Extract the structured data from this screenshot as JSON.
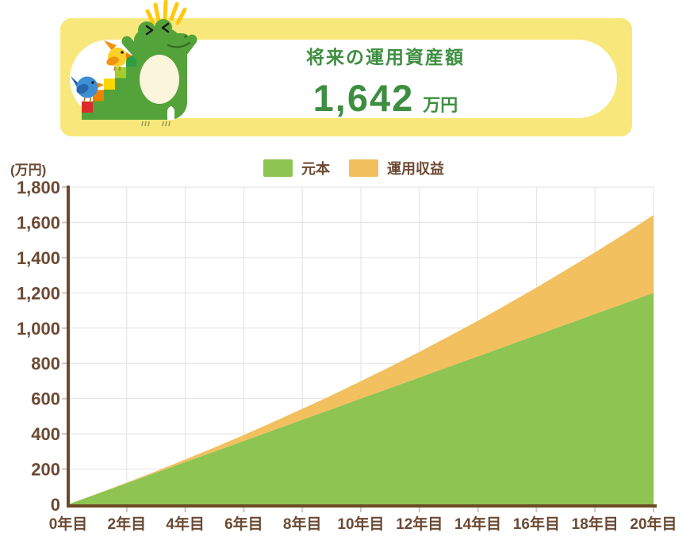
{
  "banner": {
    "title": "将来の運用資産額",
    "amount": "1,642",
    "unit": "万円",
    "mascot": "crocodile-climbing-colored-stairs-with-birds"
  },
  "chart": {
    "y_unit": "(万円)"
  },
  "colors": {
    "banner_yellow": "#f8e87c",
    "accent_green_text": "#3e8e41",
    "area_green": "#8dc452",
    "area_orange": "#f3c05f",
    "axis_brown": "#6d4a26",
    "label_brown": "#6b4a33",
    "grid_gray": "#e2e2e2",
    "tick_gray": "#c8c8c8"
  },
  "chart_data": {
    "type": "area",
    "stacked": true,
    "title": "",
    "xlabel": "",
    "ylabel": "(万円)",
    "x": [
      0,
      1,
      2,
      3,
      4,
      5,
      6,
      7,
      8,
      9,
      10,
      11,
      12,
      13,
      14,
      15,
      16,
      17,
      18,
      19,
      20
    ],
    "series": [
      {
        "name": "元本",
        "color": "#8dc452",
        "values": [
          0,
          60,
          120,
          180,
          240,
          300,
          360,
          420,
          480,
          540,
          600,
          660,
          720,
          780,
          840,
          900,
          960,
          1020,
          1080,
          1140,
          1200
        ]
      },
      {
        "name": "運用収益",
        "color": "#f3c05f",
        "values": [
          0,
          1,
          4,
          8,
          15,
          23,
          34,
          47,
          62,
          79,
          99,
          121,
          145,
          173,
          202,
          235,
          270,
          309,
          350,
          394,
          442
        ]
      }
    ],
    "totals": [
      0,
      61,
      124,
      188,
      255,
      323,
      394,
      467,
      542,
      619,
      699,
      781,
      865,
      953,
      1042,
      1135,
      1230,
      1329,
      1430,
      1534,
      1642
    ],
    "final_total": "1,642",
    "x_tick_labels": [
      "0年目",
      "2年目",
      "4年目",
      "6年目",
      "8年目",
      "10年目",
      "12年目",
      "14年目",
      "16年目",
      "18年目",
      "20年目"
    ],
    "y_tick_labels": [
      "0",
      "200",
      "400",
      "600",
      "800",
      "1,000",
      "1,200",
      "1,400",
      "1,600",
      "1,800"
    ],
    "ylim": [
      0,
      1800
    ],
    "grid": true,
    "legend_position": "top-center"
  }
}
